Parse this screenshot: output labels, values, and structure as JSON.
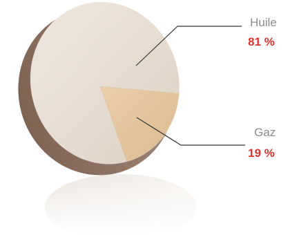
{
  "chart_data": {
    "type": "pie",
    "categories": [
      "Huile",
      "Gaz"
    ],
    "values": [
      81,
      19
    ],
    "labels": [
      "81 %",
      "19 %"
    ],
    "colors": {
      "slice_main": "#e7ddd2",
      "slice_accent": "#e3c49b",
      "side": "#8b6f5e",
      "leader": "#333333",
      "category_text": "#8c8c8c",
      "percent_text": "#e0332f"
    }
  }
}
